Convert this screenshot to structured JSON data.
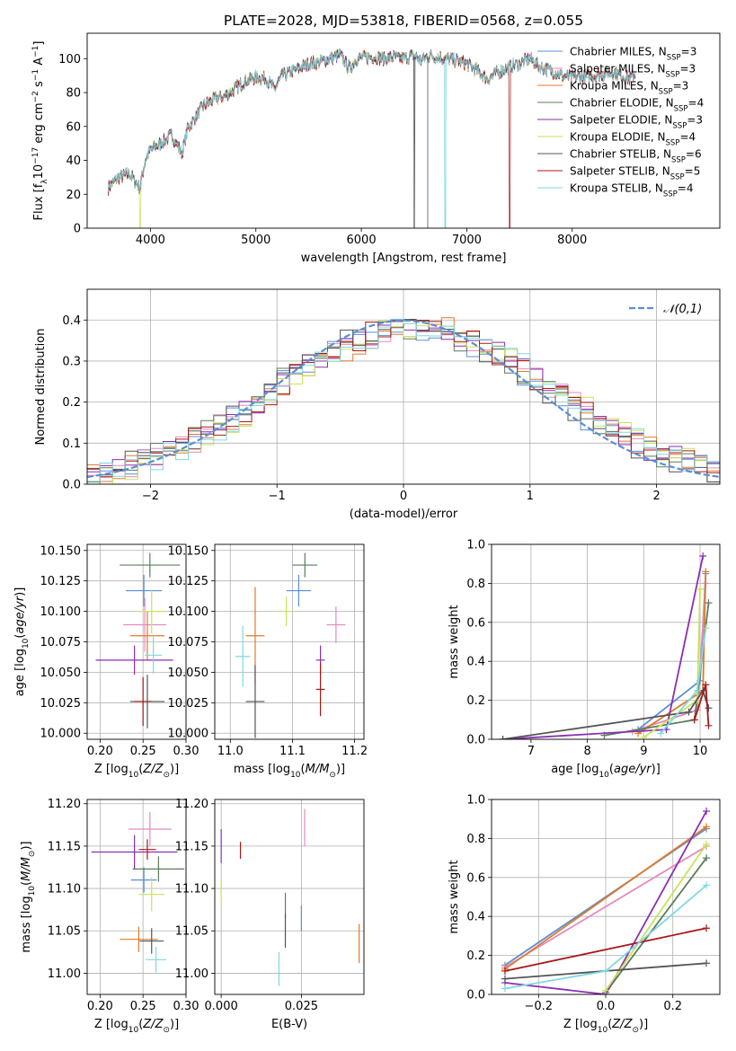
{
  "colors": {
    "Chabrier MILES": "#5b8ed6",
    "Salpeter MILES": "#e58ac0",
    "Kroupa MILES": "#e07b2a",
    "Chabrier ELODIE": "#5a7d5a",
    "Salpeter ELODIE": "#8b2fb2",
    "Kroupa ELODIE": "#c8e25a",
    "Chabrier STELIB": "#555555",
    "Salpeter STELIB": "#a81818",
    "Kroupa STELIB": "#7fd8e0",
    "normal": "#5b8ed6"
  },
  "chart_data": [
    {
      "id": "spectrum",
      "type": "line",
      "title": "PLATE=2028, MJD=53818, FIBERID=0568, z=0.055",
      "xlabel": "wavelength [Angstrom, rest frame]",
      "ylabel": "Flux [f_λ 10^-17 erg cm^-2 s^-1 A^-1]",
      "ylabel_parts": {
        "a": "Flux [",
        "b": "f",
        "c": "λ",
        "d": "10",
        "e": "−17",
        "f": " erg cm",
        "g": "−2",
        "h": " s",
        "i": "−1",
        "j": " A",
        "k": "−1",
        "l": "]"
      },
      "xlim": [
        3400,
        9400
      ],
      "ylim": [
        0,
        115
      ],
      "xticks": [
        4000,
        5000,
        6000,
        7000,
        8000
      ],
      "yticks": [
        0,
        20,
        40,
        60,
        80,
        100
      ],
      "legend_position": "upper right",
      "legend": [
        {
          "name": "Chabrier MILES",
          "nssp": "3"
        },
        {
          "name": "Salpeter MILES",
          "nssp": "3"
        },
        {
          "name": "Kroupa MILES",
          "nssp": "3"
        },
        {
          "name": "Chabrier ELODIE",
          "nssp": "4"
        },
        {
          "name": "Salpeter ELODIE",
          "nssp": "3"
        },
        {
          "name": "Kroupa ELODIE",
          "nssp": "4"
        },
        {
          "name": "Chabrier STELIB",
          "nssp": "6"
        },
        {
          "name": "Salpeter STELIB",
          "nssp": "5"
        },
        {
          "name": "Kroupa STELIB",
          "nssp": "4"
        }
      ],
      "legend_text": {
        "nssp_prefix": ", N",
        "nssp_sub": "SSP",
        "nssp_eq": "="
      },
      "spectrum_x": [
        3600,
        3700,
        3800,
        3900,
        3950,
        4000,
        4100,
        4200,
        4300,
        4350,
        4400,
        4500,
        4600,
        4700,
        4800,
        4900,
        5000,
        5100,
        5175,
        5250,
        5400,
        5500,
        5600,
        5700,
        5800,
        5890,
        5950,
        6100,
        6200,
        6300,
        6400,
        6500,
        6563,
        6650,
        6800,
        6900,
        7000,
        7100,
        7200,
        7300,
        7400,
        7500,
        7600,
        7700,
        7800,
        7900,
        8000,
        8200,
        8400,
        8540,
        8600
      ],
      "spectrum_y": [
        24,
        30,
        32,
        24,
        40,
        46,
        50,
        55,
        44,
        58,
        63,
        72,
        76,
        78,
        82,
        87,
        89,
        88,
        82,
        90,
        94,
        97,
        98,
        100,
        102,
        94,
        100,
        101,
        100,
        101,
        100,
        102,
        99,
        102,
        100,
        99,
        97,
        93,
        88,
        92,
        95,
        97,
        100,
        95,
        93,
        90,
        89,
        90,
        92,
        88,
        91
      ]
    },
    {
      "id": "residuals",
      "type": "histogram",
      "xlabel": "(data-model)/error",
      "ylabel": "Normed distribution",
      "xlim": [
        -2.5,
        2.5
      ],
      "ylim": [
        0,
        0.475
      ],
      "xticks": [
        -2,
        -1,
        0,
        1,
        2
      ],
      "yticks": [
        0.0,
        0.1,
        0.2,
        0.3,
        0.4
      ],
      "grid": true,
      "legend": [
        "𝒩(0,1)"
      ],
      "legend_position": "upper right",
      "bin_width": 0.1,
      "normal": {
        "mean": 0,
        "sigma": 1
      }
    },
    {
      "id": "age-vs-Z",
      "type": "scatter",
      "xlabel": "Z [log10(Z/Z⊙)]",
      "ylabel": "age [log10(age/yr)]",
      "xlim": [
        0.185,
        0.3
      ],
      "ylim": [
        9.995,
        10.155
      ],
      "xticks": [
        0.2,
        0.25,
        0.3
      ],
      "yticks": [
        10.0,
        10.025,
        10.05,
        10.075,
        10.1,
        10.125,
        10.15
      ],
      "grid": true,
      "points": [
        {
          "model": "Chabrier MILES",
          "x": 0.251,
          "xerr": 0.021,
          "y": 10.117,
          "yerr": 0.013
        },
        {
          "model": "Salpeter MILES",
          "x": 0.252,
          "xerr": 0.025,
          "y": 10.089,
          "yerr": 0.022
        },
        {
          "model": "Kroupa MILES",
          "x": 0.255,
          "xerr": 0.02,
          "y": 10.08,
          "yerr": 0.02
        },
        {
          "model": "Chabrier ELODIE",
          "x": 0.258,
          "xerr": 0.035,
          "y": 10.138,
          "yerr": 0.01
        },
        {
          "model": "Salpeter ELODIE",
          "x": 0.24,
          "xerr": 0.045,
          "y": 10.06,
          "yerr": 0.012
        },
        {
          "model": "Kroupa ELODIE",
          "x": 0.26,
          "xerr": 0.015,
          "y": 10.1,
          "yerr": 0.018
        },
        {
          "model": "Chabrier STELIB",
          "x": 0.255,
          "xerr": 0.02,
          "y": 10.026,
          "yerr": 0.022
        },
        {
          "model": "Salpeter STELIB",
          "x": 0.25,
          "xerr": 0.01,
          "y": 10.026,
          "yerr": 0.02
        },
        {
          "model": "Kroupa STELIB",
          "x": 0.262,
          "xerr": 0.01,
          "y": 10.064,
          "yerr": 0.015
        }
      ]
    },
    {
      "id": "age-vs-mass",
      "type": "scatter",
      "xlabel": "mass [log10(M/M⊙)]",
      "ylabel": "",
      "xlim": [
        10.975,
        11.215
      ],
      "ylim": [
        9.995,
        10.155
      ],
      "xticks": [
        11.0,
        11.1,
        11.2
      ],
      "yticks": [
        10.0,
        10.025,
        10.05,
        10.075,
        10.1,
        10.125,
        10.15
      ],
      "grid": true,
      "points": [
        {
          "model": "Chabrier MILES",
          "x": 11.11,
          "xerr": 0.02,
          "y": 10.117,
          "yerr": 0.013
        },
        {
          "model": "Salpeter MILES",
          "x": 11.17,
          "xerr": 0.015,
          "y": 10.089,
          "yerr": 0.015
        },
        {
          "model": "Kroupa MILES",
          "x": 11.04,
          "xerr": 0.015,
          "y": 10.08,
          "yerr": 0.04
        },
        {
          "model": "Chabrier ELODIE",
          "x": 11.12,
          "xerr": 0.02,
          "y": 10.138,
          "yerr": 0.01
        },
        {
          "model": "Salpeter ELODIE",
          "x": 11.145,
          "xerr": 0.007,
          "y": 10.06,
          "yerr": 0.012
        },
        {
          "model": "Kroupa ELODIE",
          "x": 11.09,
          "xerr": 0.01,
          "y": 10.1,
          "yerr": 0.012
        },
        {
          "model": "Chabrier STELIB",
          "x": 11.04,
          "xerr": 0.015,
          "y": 10.026,
          "yerr": 0.03
        },
        {
          "model": "Salpeter STELIB",
          "x": 11.145,
          "xerr": 0.007,
          "y": 10.036,
          "yerr": 0.022
        },
        {
          "model": "Kroupa STELIB",
          "x": 11.02,
          "xerr": 0.012,
          "y": 10.063,
          "yerr": 0.025
        }
      ]
    },
    {
      "id": "weight-vs-age",
      "type": "line",
      "xlabel": "age [log10(age/yr)]",
      "ylabel": "mass weight",
      "xlim": [
        6.3,
        10.35
      ],
      "ylim": [
        0,
        1.0
      ],
      "xticks": [
        7,
        8,
        9,
        10
      ],
      "yticks": [
        0.0,
        0.2,
        0.4,
        0.6,
        0.8,
        1.0
      ],
      "grid": true,
      "series": [
        {
          "model": "Chabrier MILES",
          "ages": [
            8.9,
            10.0,
            10.1
          ],
          "weights": [
            0.05,
            0.3,
            0.85
          ]
        },
        {
          "model": "Salpeter MILES",
          "ages": [
            8.8,
            9.95,
            10.1
          ],
          "weights": [
            0.04,
            0.15,
            0.8
          ]
        },
        {
          "model": "Kroupa MILES",
          "ages": [
            8.9,
            10.05,
            10.1
          ],
          "weights": [
            0.03,
            0.25,
            0.86
          ]
        },
        {
          "model": "Chabrier ELODIE",
          "ages": [
            8.3,
            9.9,
            10.15
          ],
          "weights": [
            0.02,
            0.1,
            0.7
          ]
        },
        {
          "model": "Salpeter ELODIE",
          "ages": [
            6.5,
            9.4,
            10.05
          ],
          "weights": [
            0.0,
            0.05,
            0.94
          ]
        },
        {
          "model": "Kroupa ELODIE",
          "ages": [
            9.0,
            9.95,
            10.0
          ],
          "weights": [
            0.01,
            0.2,
            0.77
          ]
        },
        {
          "model": "Chabrier STELIB",
          "ages": [
            6.5,
            9.8,
            10.05,
            10.15
          ],
          "weights": [
            0.0,
            0.14,
            0.25,
            0.16
          ]
        },
        {
          "model": "Salpeter STELIB",
          "ages": [
            9.9,
            10.1,
            10.15
          ],
          "weights": [
            0.1,
            0.28,
            0.07
          ]
        },
        {
          "model": "Kroupa STELIB",
          "ages": [
            9.3,
            9.95,
            10.1
          ],
          "weights": [
            0.03,
            0.25,
            0.57
          ]
        }
      ]
    },
    {
      "id": "mass-vs-Z",
      "type": "scatter",
      "xlabel": "Z [log10(Z/Z⊙)]",
      "ylabel": "mass [log10(M/M⊙)]",
      "xlim": [
        0.185,
        0.3
      ],
      "ylim": [
        10.975,
        11.205
      ],
      "xticks": [
        0.2,
        0.25,
        0.3
      ],
      "yticks": [
        11.0,
        11.05,
        11.1,
        11.15,
        11.2
      ],
      "grid": true,
      "points": [
        {
          "model": "Chabrier MILES",
          "x": 0.251,
          "xerr": 0.015,
          "y": 11.11,
          "yerr": 0.015
        },
        {
          "model": "Salpeter MILES",
          "x": 0.258,
          "xerr": 0.025,
          "y": 11.17,
          "yerr": 0.02
        },
        {
          "model": "Kroupa MILES",
          "x": 0.245,
          "xerr": 0.022,
          "y": 11.04,
          "yerr": 0.015
        },
        {
          "model": "Chabrier ELODIE",
          "x": 0.268,
          "xerr": 0.03,
          "y": 11.123,
          "yerr": 0.015
        },
        {
          "model": "Salpeter ELODIE",
          "x": 0.24,
          "xerr": 0.05,
          "y": 11.143,
          "yerr": 0.02
        },
        {
          "model": "Kroupa ELODIE",
          "x": 0.26,
          "xerr": 0.015,
          "y": 11.093,
          "yerr": 0.02
        },
        {
          "model": "Chabrier STELIB",
          "x": 0.26,
          "xerr": 0.014,
          "y": 11.038,
          "yerr": 0.015
        },
        {
          "model": "Salpeter STELIB",
          "x": 0.255,
          "xerr": 0.01,
          "y": 11.146,
          "yerr": 0.012
        },
        {
          "model": "Kroupa STELIB",
          "x": 0.265,
          "xerr": 0.012,
          "y": 11.016,
          "yerr": 0.015
        }
      ]
    },
    {
      "id": "mass-vs-EBV",
      "type": "scatter",
      "xlabel": "E(B-V)",
      "ylabel": "",
      "xlim": [
        -0.002,
        0.0445
      ],
      "ylim": [
        10.975,
        11.205
      ],
      "xticks": [
        0.0,
        0.025
      ],
      "yticks": [
        11.0,
        11.05,
        11.1,
        11.15,
        11.2
      ],
      "grid": true,
      "points": [
        {
          "model": "Chabrier MILES",
          "x": 0.025,
          "xerr": 0.0,
          "y": 11.065,
          "yerr": 0.015
        },
        {
          "model": "Salpeter MILES",
          "x": 0.026,
          "xerr": 0.0,
          "y": 11.172,
          "yerr": 0.022
        },
        {
          "model": "Kroupa MILES",
          "x": 0.043,
          "xerr": 0.0,
          "y": 11.035,
          "yerr": 0.023
        },
        {
          "model": "Chabrier ELODIE",
          "x": 0.02,
          "xerr": 0.0,
          "y": 11.08,
          "yerr": 0.015
        },
        {
          "model": "Salpeter ELODIE",
          "x": 0.0,
          "xerr": 0.0,
          "y": 11.15,
          "yerr": 0.02
        },
        {
          "model": "Kroupa ELODIE",
          "x": 0.0,
          "xerr": 0.0,
          "y": 11.095,
          "yerr": 0.015
        },
        {
          "model": "Chabrier STELIB",
          "x": 0.02,
          "xerr": 0.0,
          "y": 11.05,
          "yerr": 0.02
        },
        {
          "model": "Salpeter STELIB",
          "x": 0.006,
          "xerr": 0.0,
          "y": 11.145,
          "yerr": 0.01
        },
        {
          "model": "Kroupa STELIB",
          "x": 0.018,
          "xerr": 0.0,
          "y": 11.005,
          "yerr": 0.02
        }
      ]
    },
    {
      "id": "weight-vs-Z",
      "type": "line",
      "xlabel": "Z [log10(Z/Z⊙)]",
      "ylabel": "mass weight",
      "xlim": [
        -0.34,
        0.34
      ],
      "ylim": [
        0,
        1.0
      ],
      "xticks": [
        -0.2,
        0.0,
        0.2
      ],
      "yticks": [
        0.0,
        0.2,
        0.4,
        0.6,
        0.8,
        1.0
      ],
      "grid": true,
      "series": [
        {
          "model": "Chabrier MILES",
          "Z": [
            -0.3,
            0.3
          ],
          "weights": [
            0.15,
            0.85
          ]
        },
        {
          "model": "Salpeter MILES",
          "Z": [
            -0.3,
            0.3
          ],
          "weights": [
            0.14,
            0.76
          ]
        },
        {
          "model": "Kroupa MILES",
          "Z": [
            -0.3,
            0.3
          ],
          "weights": [
            0.13,
            0.86
          ]
        },
        {
          "model": "Chabrier ELODIE",
          "Z": [
            0.0,
            0.3
          ],
          "weights": [
            0.01,
            0.7
          ]
        },
        {
          "model": "Salpeter ELODIE",
          "Z": [
            -0.3,
            0.0,
            0.3
          ],
          "weights": [
            0.06,
            0.0,
            0.94
          ]
        },
        {
          "model": "Kroupa ELODIE",
          "Z": [
            0.0,
            0.3
          ],
          "weights": [
            0.02,
            0.77
          ]
        },
        {
          "model": "Chabrier STELIB",
          "Z": [
            -0.3,
            0.3
          ],
          "weights": [
            0.08,
            0.16
          ]
        },
        {
          "model": "Salpeter STELIB",
          "Z": [
            -0.3,
            0.3
          ],
          "weights": [
            0.12,
            0.34
          ]
        },
        {
          "model": "Kroupa STELIB",
          "Z": [
            -0.3,
            0.0,
            0.3
          ],
          "weights": [
            0.03,
            0.12,
            0.56
          ]
        }
      ]
    }
  ]
}
